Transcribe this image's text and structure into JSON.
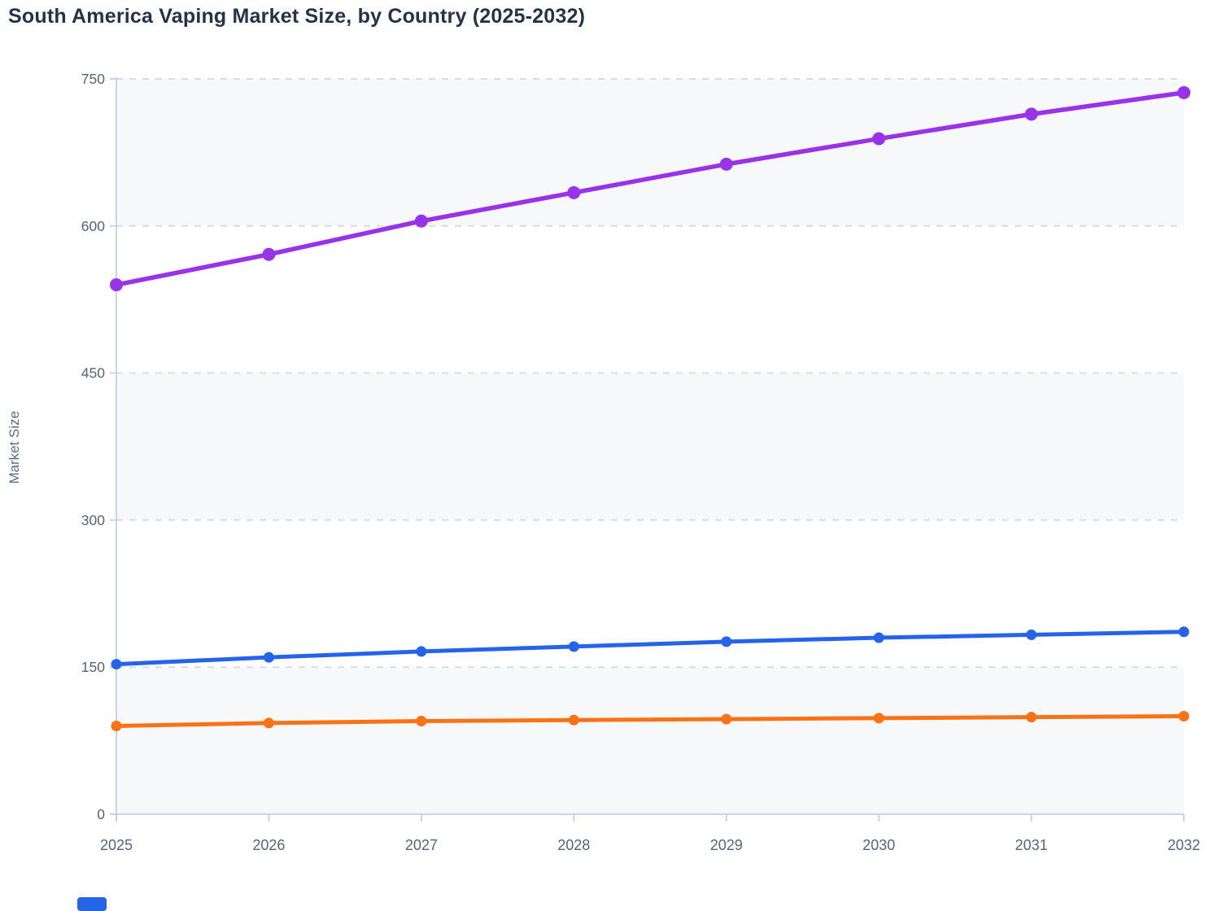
{
  "title": "South America Vaping Market Size, by Country (2025-2032)",
  "y_axis": {
    "label": "Market Size",
    "ticks": [
      0,
      150,
      300,
      450,
      600,
      750
    ]
  },
  "x_axis": {
    "categories": [
      "2025",
      "2026",
      "2027",
      "2028",
      "2029",
      "2030",
      "2031",
      "2032"
    ]
  },
  "chart_data": {
    "type": "line",
    "title": "South America Vaping Market Size, by Country (2025-2032)",
    "xlabel": "",
    "ylabel": "Market Size",
    "ylim": [
      0,
      750
    ],
    "x": [
      2025,
      2026,
      2027,
      2028,
      2029,
      2030,
      2031,
      2032
    ],
    "categories": [
      "2025",
      "2026",
      "2027",
      "2028",
      "2029",
      "2030",
      "2031",
      "2032"
    ],
    "grid": "horizontal dashed gridlines, alternating light band fills",
    "legend_position": "bottom (cut off, only one blue swatch partially visible)",
    "series": [
      {
        "name": "purple-series",
        "color": "#9933ea",
        "values": [
          540,
          571,
          605,
          634,
          663,
          689,
          714,
          736
        ]
      },
      {
        "name": "blue-series",
        "color": "#2563eb",
        "values": [
          153,
          160,
          166,
          171,
          176,
          180,
          183,
          186
        ]
      },
      {
        "name": "orange-series",
        "color": "#f97316",
        "values": [
          90,
          93,
          95,
          96,
          97,
          98,
          99,
          100
        ]
      }
    ]
  },
  "legend": {
    "partial_swatch_color": "#2563eb"
  },
  "colors": {
    "title_text": "#253349",
    "tick_text": "#566379",
    "axis_line": "#c3cdee",
    "gridline": "#d9dce2",
    "band_fill": "#f7f8fa",
    "background": "#ffffff"
  }
}
